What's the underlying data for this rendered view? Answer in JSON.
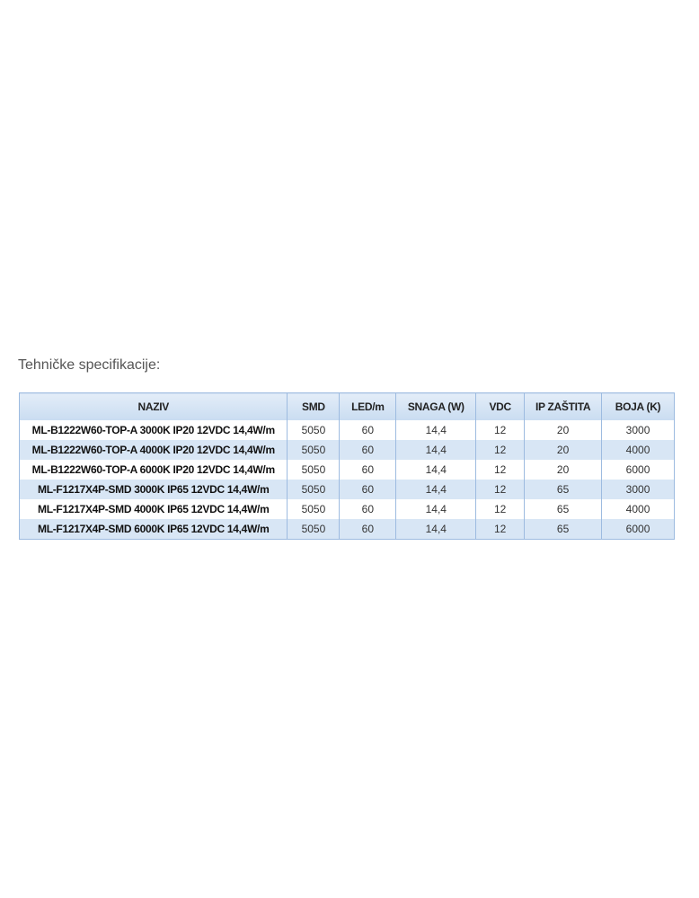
{
  "title": "Tehničke specifikacije:",
  "table": {
    "headers": [
      "NAZIV",
      "SMD",
      "LED/m",
      "SNAGA (W)",
      "VDC",
      "IP ZAŠTITA",
      "BOJA (K)"
    ],
    "rows": [
      [
        "ML-B1222W60-TOP-A 3000K IP20 12VDC 14,4W/m",
        "5050",
        "60",
        "14,4",
        "12",
        "20",
        "3000"
      ],
      [
        "ML-B1222W60-TOP-A 4000K IP20 12VDC 14,4W/m",
        "5050",
        "60",
        "14,4",
        "12",
        "20",
        "4000"
      ],
      [
        "ML-B1222W60-TOP-A 6000K IP20 12VDC 14,4W/m",
        "5050",
        "60",
        "14,4",
        "12",
        "20",
        "6000"
      ],
      [
        "ML-F1217X4P-SMD 3000K IP65 12VDC 14,4W/m",
        "5050",
        "60",
        "14,4",
        "12",
        "65",
        "3000"
      ],
      [
        "ML-F1217X4P-SMD 4000K IP65 12VDC 14,4W/m",
        "5050",
        "60",
        "14,4",
        "12",
        "65",
        "4000"
      ],
      [
        "ML-F1217X4P-SMD 6000K IP65 12VDC 14,4W/m",
        "5050",
        "60",
        "14,4",
        "12",
        "65",
        "6000"
      ]
    ]
  },
  "colors": {
    "header_bg": "#c9dcf1",
    "alt_row_bg": "#d8e6f5",
    "border": "#9dbbe0"
  }
}
